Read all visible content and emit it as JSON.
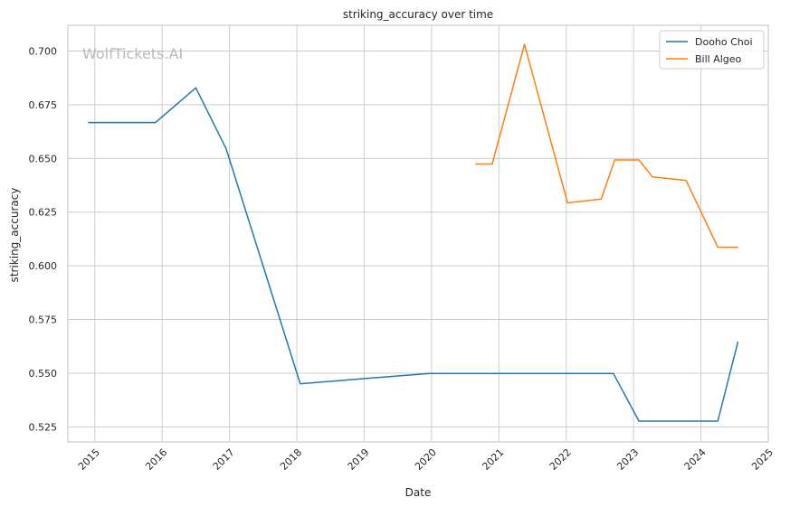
{
  "chart_data": {
    "type": "line",
    "title": "striking_accuracy over time",
    "xlabel": "Date",
    "ylabel": "striking_accuracy",
    "watermark": "WolfTickets.AI",
    "x_ticks": [
      "2015",
      "2016",
      "2017",
      "2018",
      "2019",
      "2020",
      "2021",
      "2022",
      "2023",
      "2024",
      "2025"
    ],
    "y_ticks": [
      "0.525",
      "0.550",
      "0.575",
      "0.600",
      "0.625",
      "0.650",
      "0.675",
      "0.700"
    ],
    "xlim": [
      2014.6,
      2025.0
    ],
    "ylim": [
      0.518,
      0.712
    ],
    "grid": true,
    "legend_position": "top-right",
    "series": [
      {
        "name": "Dooho Choi",
        "color": "#1f77b4",
        "x": [
          2014.9,
          2015.9,
          2016.5,
          2016.95,
          2018.05,
          2019.97,
          2022.7,
          2023.08,
          2024.25,
          2024.55
        ],
        "y": [
          0.6667,
          0.6667,
          0.6829,
          0.6545,
          0.5451,
          0.5499,
          0.5499,
          0.5277,
          0.5277,
          0.5647
        ]
      },
      {
        "name": "Bill Algeo",
        "color": "#ff7f0e",
        "x": [
          2020.65,
          2020.9,
          2021.38,
          2022.02,
          2022.52,
          2022.72,
          2023.08,
          2023.28,
          2023.78,
          2024.25,
          2024.55
        ],
        "y": [
          0.6474,
          0.6474,
          0.7031,
          0.6293,
          0.6311,
          0.6493,
          0.6493,
          0.6414,
          0.6398,
          0.6087,
          0.6086
        ]
      }
    ]
  }
}
